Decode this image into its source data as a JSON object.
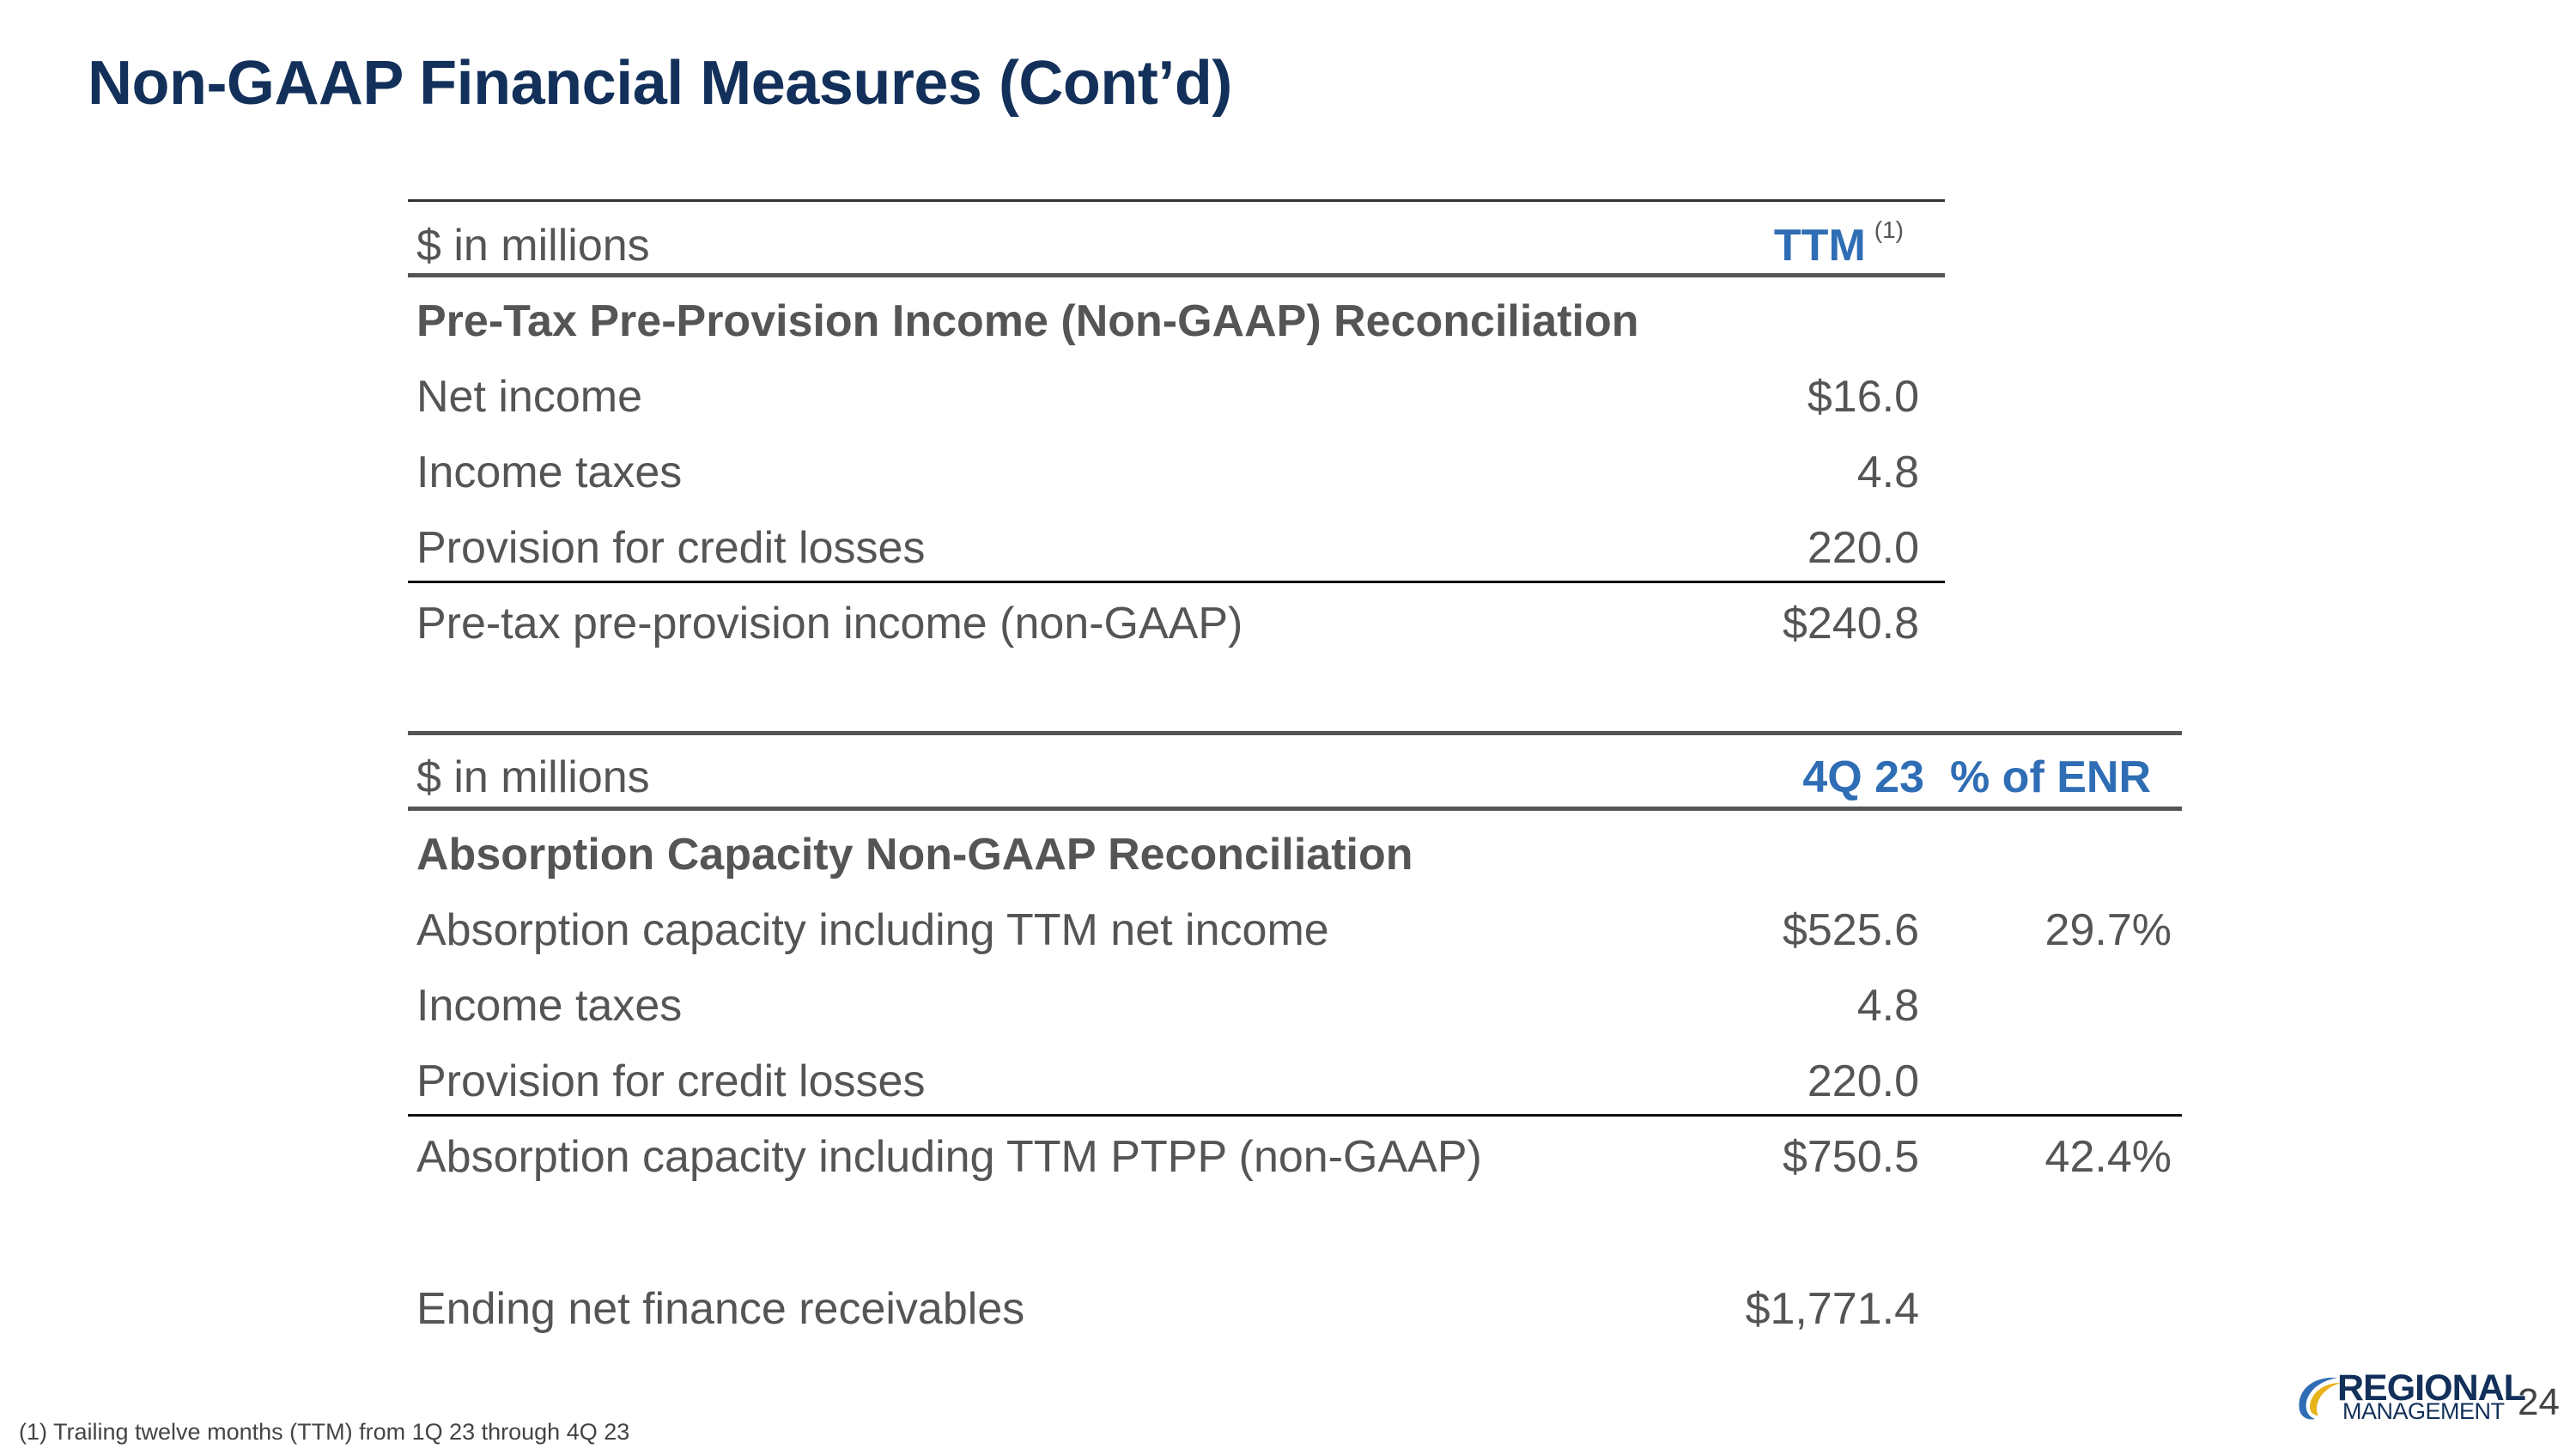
{
  "title": "Non-GAAP Financial Measures (Cont’d)",
  "table1": {
    "unit_label": "$ in millions",
    "col_header": "TTM",
    "col_header_note": "(1)",
    "section_title": "Pre-Tax Pre-Provision Income (Non-GAAP) Reconciliation",
    "rows": [
      {
        "label": "Net income",
        "value": "$16.0"
      },
      {
        "label": "Income taxes",
        "value": "4.8"
      },
      {
        "label": "Provision for credit losses",
        "value": "220.0"
      },
      {
        "label": "Pre-tax pre-provision income (non-GAAP)",
        "value": "$240.8"
      }
    ]
  },
  "table2": {
    "unit_label": "$ in millions",
    "col_header": "4Q 23",
    "col_header2": "% of ENR",
    "section_title": "Absorption Capacity Non-GAAP Reconciliation",
    "rows": [
      {
        "label": "Absorption capacity including TTM net income",
        "value": "$525.6",
        "pct": "29.7%"
      },
      {
        "label": "Income taxes",
        "value": "4.8",
        "pct": ""
      },
      {
        "label": "Provision for credit losses",
        "value": "220.0",
        "pct": ""
      },
      {
        "label": "Absorption capacity including TTM PTPP (non-GAAP)",
        "value": "$750.5",
        "pct": "42.4%"
      }
    ],
    "enr_label": "Ending net finance receivables",
    "enr_value": "$1,771.4"
  },
  "footnote": "(1) Trailing twelve months (TTM) from 1Q 23 through 4Q 23",
  "logo": {
    "line1": "REGIONAL",
    "line2": "MANAGEMENT"
  },
  "page_number": "24",
  "colors": {
    "title": "#12305a",
    "header_accent": "#2f6db5",
    "text": "#555555"
  }
}
